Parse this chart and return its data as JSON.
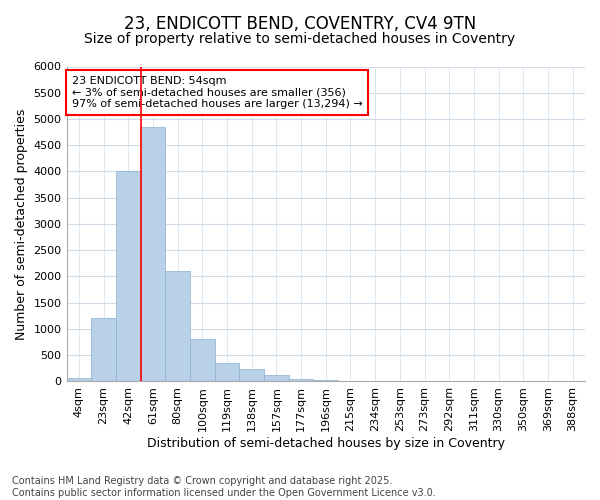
{
  "title1": "23, ENDICOTT BEND, COVENTRY, CV4 9TN",
  "title2": "Size of property relative to semi-detached houses in Coventry",
  "xlabel": "Distribution of semi-detached houses by size in Coventry",
  "ylabel": "Number of semi-detached properties",
  "categories": [
    "4sqm",
    "23sqm",
    "42sqm",
    "61sqm",
    "80sqm",
    "100sqm",
    "119sqm",
    "138sqm",
    "157sqm",
    "177sqm",
    "196sqm",
    "215sqm",
    "234sqm",
    "253sqm",
    "273sqm",
    "292sqm",
    "311sqm",
    "330sqm",
    "350sqm",
    "369sqm",
    "388sqm"
  ],
  "values": [
    60,
    1200,
    4000,
    4850,
    2100,
    800,
    350,
    240,
    120,
    50,
    20,
    5,
    0,
    0,
    0,
    0,
    0,
    0,
    0,
    0,
    0
  ],
  "bar_color": "#b8d0e8",
  "bar_edge_color": "#8ab0d0",
  "vline_x": 2.5,
  "vline_color": "red",
  "annotation_text": "23 ENDICOTT BEND: 54sqm\n← 3% of semi-detached houses are smaller (356)\n97% of semi-detached houses are larger (13,294) →",
  "annotation_box_color": "white",
  "annotation_box_edge_color": "red",
  "ylim": [
    0,
    6000
  ],
  "yticks": [
    0,
    500,
    1000,
    1500,
    2000,
    2500,
    3000,
    3500,
    4000,
    4500,
    5000,
    5500,
    6000
  ],
  "background_color": "#ffffff",
  "plot_bg_color": "#ffffff",
  "grid_color": "#d0dce8",
  "footnote": "Contains HM Land Registry data © Crown copyright and database right 2025.\nContains public sector information licensed under the Open Government Licence v3.0.",
  "title_fontsize": 12,
  "subtitle_fontsize": 10,
  "axis_label_fontsize": 9,
  "tick_fontsize": 8,
  "annotation_fontsize": 8,
  "footnote_fontsize": 7
}
